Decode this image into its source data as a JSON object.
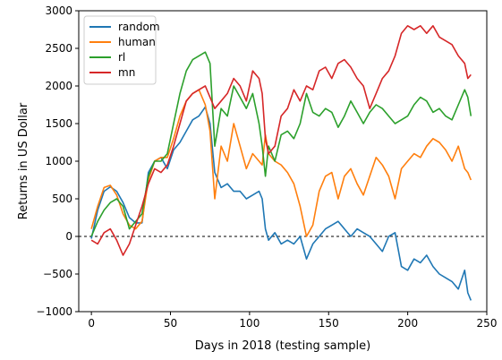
{
  "chart_data": {
    "type": "line",
    "title": "",
    "xlabel": "Days in 2018 (testing sample)",
    "ylabel": "Returns in US Dollar",
    "xlim": [
      -8,
      250
    ],
    "ylim": [
      -1000,
      3000
    ],
    "xticks": [
      0,
      50,
      100,
      150,
      200,
      250
    ],
    "yticks": [
      -1000,
      -500,
      0,
      500,
      1000,
      1500,
      2000,
      2500,
      3000
    ],
    "grid": false,
    "legend_position": "top-left",
    "reference_line": {
      "y": 0,
      "style": "dashed",
      "color": "#000000"
    },
    "series": [
      {
        "name": "random",
        "color": "#1f77b4",
        "x": [
          0,
          4,
          8,
          12,
          16,
          20,
          24,
          28,
          32,
          36,
          40,
          44,
          48,
          52,
          56,
          60,
          64,
          68,
          72,
          75,
          78,
          82,
          86,
          90,
          94,
          98,
          102,
          106,
          108,
          110,
          112,
          116,
          120,
          124,
          128,
          132,
          136,
          140,
          144,
          148,
          152,
          156,
          160,
          164,
          168,
          172,
          176,
          180,
          184,
          188,
          192,
          196,
          200,
          204,
          208,
          212,
          216,
          220,
          224,
          228,
          232,
          236,
          238,
          240
        ],
        "y": [
          -30,
          350,
          600,
          660,
          600,
          450,
          250,
          180,
          180,
          850,
          1000,
          1050,
          900,
          1150,
          1250,
          1400,
          1550,
          1600,
          1720,
          1500,
          850,
          650,
          700,
          600,
          600,
          500,
          550,
          600,
          500,
          100,
          -50,
          50,
          -100,
          -50,
          -100,
          0,
          -300,
          -100,
          0,
          100,
          150,
          200,
          100,
          0,
          100,
          50,
          0,
          -100,
          -200,
          0,
          50,
          -400,
          -450,
          -300,
          -350,
          -250,
          -400,
          -500,
          -550,
          -600,
          -700,
          -450,
          -750,
          -850
        ]
      },
      {
        "name": "human",
        "color": "#ff7f0e",
        "x": [
          0,
          4,
          8,
          12,
          16,
          20,
          24,
          28,
          32,
          36,
          40,
          44,
          48,
          52,
          56,
          60,
          64,
          68,
          72,
          75,
          78,
          82,
          86,
          90,
          94,
          98,
          102,
          106,
          108,
          110,
          112,
          116,
          120,
          124,
          128,
          132,
          136,
          140,
          144,
          148,
          152,
          156,
          160,
          164,
          168,
          172,
          176,
          180,
          184,
          188,
          192,
          196,
          200,
          204,
          208,
          212,
          216,
          220,
          224,
          228,
          232,
          236,
          238,
          240
        ],
        "y": [
          100,
          400,
          650,
          680,
          550,
          300,
          150,
          100,
          200,
          750,
          1000,
          1050,
          1050,
          1300,
          1600,
          1800,
          1900,
          1950,
          1750,
          1400,
          500,
          1200,
          1000,
          1500,
          1200,
          900,
          1100,
          1000,
          950,
          1350,
          1100,
          1000,
          950,
          850,
          700,
          400,
          0,
          150,
          600,
          800,
          850,
          500,
          800,
          900,
          700,
          550,
          800,
          1050,
          950,
          800,
          500,
          900,
          1000,
          1100,
          1050,
          1200,
          1300,
          1250,
          1150,
          1000,
          1200,
          900,
          850,
          750
        ]
      },
      {
        "name": "rl",
        "color": "#2ca02c",
        "x": [
          0,
          4,
          8,
          12,
          16,
          20,
          24,
          28,
          32,
          36,
          40,
          44,
          48,
          52,
          56,
          60,
          64,
          68,
          72,
          75,
          78,
          82,
          86,
          90,
          94,
          98,
          102,
          106,
          108,
          110,
          112,
          116,
          120,
          124,
          128,
          132,
          136,
          140,
          144,
          148,
          152,
          156,
          160,
          164,
          168,
          172,
          176,
          180,
          184,
          188,
          192,
          196,
          200,
          204,
          208,
          212,
          216,
          220,
          224,
          228,
          232,
          236,
          238,
          240
        ],
        "y": [
          0,
          200,
          350,
          450,
          500,
          400,
          100,
          200,
          300,
          800,
          1000,
          1000,
          1100,
          1500,
          1900,
          2200,
          2350,
          2400,
          2450,
          2300,
          1200,
          1700,
          1600,
          2000,
          1850,
          1700,
          1900,
          1500,
          1200,
          800,
          1200,
          1000,
          1350,
          1400,
          1300,
          1500,
          1900,
          1650,
          1600,
          1700,
          1650,
          1450,
          1600,
          1800,
          1650,
          1500,
          1650,
          1750,
          1700,
          1600,
          1500,
          1550,
          1600,
          1750,
          1850,
          1800,
          1650,
          1700,
          1600,
          1550,
          1750,
          1950,
          1850,
          1600
        ]
      },
      {
        "name": "mn",
        "color": "#d62728",
        "x": [
          0,
          4,
          8,
          12,
          16,
          20,
          24,
          28,
          32,
          36,
          40,
          44,
          48,
          52,
          56,
          60,
          64,
          68,
          72,
          75,
          78,
          82,
          86,
          90,
          94,
          98,
          102,
          106,
          108,
          110,
          112,
          116,
          120,
          124,
          128,
          132,
          136,
          140,
          144,
          148,
          152,
          156,
          160,
          164,
          168,
          172,
          176,
          180,
          184,
          188,
          192,
          196,
          200,
          204,
          208,
          212,
          216,
          220,
          224,
          228,
          232,
          236,
          238,
          240
        ],
        "y": [
          -50,
          -100,
          50,
          100,
          -50,
          -250,
          -100,
          150,
          400,
          700,
          900,
          850,
          950,
          1200,
          1500,
          1800,
          1900,
          1950,
          2000,
          1850,
          1700,
          1800,
          1900,
          2100,
          2000,
          1800,
          2200,
          2100,
          1900,
          1300,
          1100,
          1200,
          1600,
          1700,
          1950,
          1800,
          2000,
          1950,
          2200,
          2250,
          2100,
          2300,
          2350,
          2250,
          2100,
          2000,
          1700,
          1900,
          2100,
          2200,
          2400,
          2700,
          2800,
          2750,
          2800,
          2700,
          2800,
          2650,
          2600,
          2550,
          2400,
          2300,
          2100,
          2150
        ]
      }
    ]
  }
}
